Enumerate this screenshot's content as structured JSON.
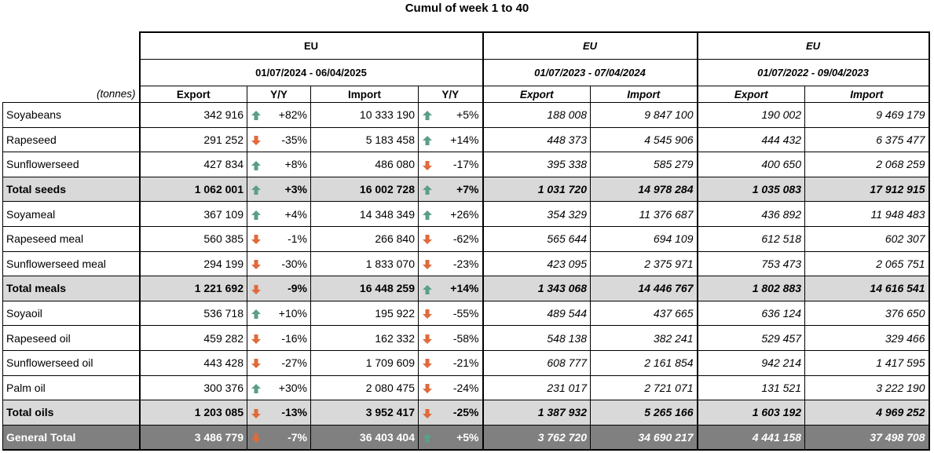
{
  "title": "Cumul of week 1 to 40",
  "units": "(tonnes)",
  "groups": [
    {
      "region": "EU",
      "period": "01/07/2024 - 06/04/2025"
    },
    {
      "region": "EU",
      "period": "01/07/2023 - 07/04/2024"
    },
    {
      "region": "EU",
      "period": "01/07/2022 - 09/04/2023"
    }
  ],
  "headers": {
    "export": "Export",
    "yy": "Y/Y",
    "import": "Import"
  },
  "colors": {
    "up": "#5b9e8a",
    "down": "#e06a3b",
    "total_bg": "#d9d9d9",
    "grand_bg": "#808080"
  },
  "rows": [
    {
      "label": "Soyabeans",
      "type": "item",
      "exp": "342 916",
      "exp_dir": "up",
      "exp_yy": "+82%",
      "imp": "10 333 190",
      "imp_dir": "up",
      "imp_yy": "+5%",
      "exp23": "188 008",
      "imp23": "9 847 100",
      "exp22": "190 002",
      "imp22": "9 469 179"
    },
    {
      "label": "Rapeseed",
      "type": "item",
      "exp": "291 252",
      "exp_dir": "down",
      "exp_yy": "-35%",
      "imp": "5 183 458",
      "imp_dir": "up",
      "imp_yy": "+14%",
      "exp23": "448 373",
      "imp23": "4 545 906",
      "exp22": "444 432",
      "imp22": "6 375 477"
    },
    {
      "label": "Sunflowerseed",
      "type": "item",
      "exp": "427 834",
      "exp_dir": "up",
      "exp_yy": "+8%",
      "imp": "486 080",
      "imp_dir": "down",
      "imp_yy": "-17%",
      "exp23": "395 338",
      "imp23": "585 279",
      "exp22": "400 650",
      "imp22": "2 068 259"
    },
    {
      "label": "Total seeds",
      "type": "total",
      "exp": "1 062 001",
      "exp_dir": "up",
      "exp_yy": "+3%",
      "imp": "16 002 728",
      "imp_dir": "up",
      "imp_yy": "+7%",
      "exp23": "1 031 720",
      "imp23": "14 978 284",
      "exp22": "1 035 083",
      "imp22": "17 912 915"
    },
    {
      "label": "Soyameal",
      "type": "item",
      "exp": "367 109",
      "exp_dir": "up",
      "exp_yy": "+4%",
      "imp": "14 348 349",
      "imp_dir": "up",
      "imp_yy": "+26%",
      "exp23": "354 329",
      "imp23": "11 376 687",
      "exp22": "436 892",
      "imp22": "11 948 483"
    },
    {
      "label": "Rapeseed meal",
      "type": "item",
      "exp": "560 385",
      "exp_dir": "down",
      "exp_yy": "-1%",
      "imp": "266 840",
      "imp_dir": "down",
      "imp_yy": "-62%",
      "exp23": "565 644",
      "imp23": "694 109",
      "exp22": "612 518",
      "imp22": "602 307"
    },
    {
      "label": "Sunflowerseed meal",
      "type": "item",
      "exp": "294 199",
      "exp_dir": "down",
      "exp_yy": "-30%",
      "imp": "1 833 070",
      "imp_dir": "down",
      "imp_yy": "-23%",
      "exp23": "423 095",
      "imp23": "2 375 971",
      "exp22": "753 473",
      "imp22": "2 065 751"
    },
    {
      "label": "Total meals",
      "type": "total",
      "exp": "1 221 692",
      "exp_dir": "down",
      "exp_yy": "-9%",
      "imp": "16 448 259",
      "imp_dir": "up",
      "imp_yy": "+14%",
      "exp23": "1 343 068",
      "imp23": "14 446 767",
      "exp22": "1 802 883",
      "imp22": "14 616 541"
    },
    {
      "label": "Soyaoil",
      "type": "item",
      "exp": "536 718",
      "exp_dir": "up",
      "exp_yy": "+10%",
      "imp": "195 922",
      "imp_dir": "down",
      "imp_yy": "-55%",
      "exp23": "489 544",
      "imp23": "437 665",
      "exp22": "636 124",
      "imp22": "376 650"
    },
    {
      "label": "Rapeseed oil",
      "type": "item",
      "exp": "459 282",
      "exp_dir": "down",
      "exp_yy": "-16%",
      "imp": "162 332",
      "imp_dir": "down",
      "imp_yy": "-58%",
      "exp23": "548 138",
      "imp23": "382 241",
      "exp22": "529 457",
      "imp22": "329 466"
    },
    {
      "label": "Sunflowerseed oil",
      "type": "item",
      "exp": "443 428",
      "exp_dir": "down",
      "exp_yy": "-27%",
      "imp": "1 709 609",
      "imp_dir": "down",
      "imp_yy": "-21%",
      "exp23": "608 777",
      "imp23": "2 161 854",
      "exp22": "942 214",
      "imp22": "1 417 595"
    },
    {
      "label": "Palm oil",
      "type": "item",
      "exp": "300 376",
      "exp_dir": "up",
      "exp_yy": "+30%",
      "imp": "2 080 475",
      "imp_dir": "down",
      "imp_yy": "-24%",
      "exp23": "231 017",
      "imp23": "2 721 071",
      "exp22": "131 521",
      "imp22": "3 222 190"
    },
    {
      "label": "Total oils",
      "type": "total",
      "exp": "1 203 085",
      "exp_dir": "down",
      "exp_yy": "-13%",
      "imp": "3 952 417",
      "imp_dir": "down",
      "imp_yy": "-25%",
      "exp23": "1 387 932",
      "imp23": "5 265 166",
      "exp22": "1 603 192",
      "imp22": "4 969 252"
    },
    {
      "label": "General Total",
      "type": "gtotal",
      "exp": "3 486 779",
      "exp_dir": "down",
      "exp_yy": "-7%",
      "imp": "36 403 404",
      "imp_dir": "up",
      "imp_yy": "+5%",
      "exp23": "3 762 720",
      "imp23": "34 690 217",
      "exp22": "4 441 158",
      "imp22": "37 498 708"
    }
  ]
}
